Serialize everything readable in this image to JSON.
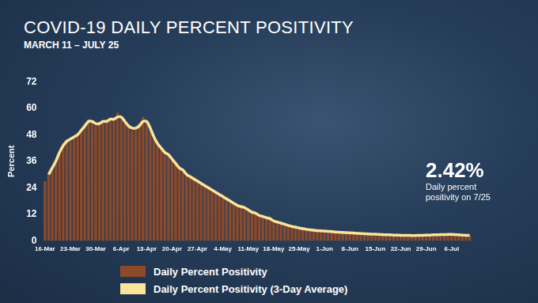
{
  "chart_data": {
    "type": "bar",
    "title": "COVID-19 DAILY PERCENT POSITIVITY",
    "subtitle": "MARCH 11 – JULY 25",
    "y_label": "Percent",
    "annotations": [
      "2.42%",
      "Daily percent positivity on 7/25"
    ],
    "categories": [
      "16-Mar",
      null,
      null,
      null,
      null,
      null,
      null,
      "23-Mar",
      null,
      null,
      null,
      null,
      null,
      null,
      "30-Mar",
      null,
      null,
      null,
      null,
      null,
      null,
      "6-Apr",
      null,
      null,
      null,
      null,
      null,
      null,
      "13-Apr",
      null,
      null,
      null,
      null,
      null,
      null,
      "20-Apr",
      null,
      null,
      null,
      null,
      null,
      null,
      "27-Apr",
      null,
      null,
      null,
      null,
      null,
      null,
      "4-May",
      null,
      null,
      null,
      null,
      null,
      null,
      "11-May",
      null,
      null,
      null,
      null,
      null,
      null,
      "18-May",
      null,
      null,
      null,
      null,
      null,
      null,
      "25-May",
      null,
      null,
      null,
      null,
      null,
      null,
      "1-Jun",
      null,
      null,
      null,
      null,
      null,
      null,
      "8-Jun",
      null,
      null,
      null,
      null,
      null,
      null,
      "15-Jun",
      null,
      null,
      null,
      null,
      null,
      null,
      "22-Jun",
      null,
      null,
      null,
      null,
      null,
      null,
      "29-Jun",
      null,
      null,
      null,
      null,
      null,
      null,
      "6-Jul",
      null,
      null,
      null,
      null,
      null
    ],
    "series": [
      {
        "name": "Daily Percent Positivity",
        "type": "bar",
        "color": "#8c4a2a",
        "values": [
          27,
          30,
          33,
          36,
          40,
          44,
          46,
          45,
          47,
          48,
          50,
          53,
          55,
          54,
          52,
          54,
          53,
          55,
          54,
          56,
          58,
          55,
          54,
          52,
          50,
          51,
          53,
          56,
          54,
          50,
          46,
          43,
          41,
          40,
          39,
          37,
          35,
          33,
          31,
          30,
          29,
          29,
          27,
          26,
          25,
          24,
          23,
          22,
          21,
          20,
          19,
          18,
          17,
          16,
          15,
          15,
          14,
          13,
          12,
          11,
          11,
          10,
          10,
          9,
          8.5,
          8,
          7.5,
          7,
          6.5,
          6,
          5.8,
          5.5,
          5.2,
          5,
          4.8,
          4.6,
          4.5,
          4.5,
          4.3,
          4.2,
          4,
          3.9,
          3.8,
          3.7,
          3.6,
          3.5,
          3.4,
          3.3,
          3.2,
          3.1,
          3,
          3,
          2.9,
          2.8,
          2.7,
          2.7,
          2.6,
          2.6,
          2.5,
          2.5,
          2.5,
          2.4,
          2.4,
          2.5,
          2.5,
          2.6,
          2.6,
          2.7,
          2.7,
          2.8,
          2.8,
          2.9,
          2.9,
          2.8,
          2.7,
          2.6,
          2.5,
          2.5
        ]
      },
      {
        "name": "Daily Percent Positivity (3-Day Average)",
        "type": "line",
        "color": "#f9e49a",
        "values": [
          null,
          30,
          33,
          36,
          40,
          43,
          45,
          46,
          47,
          48,
          50,
          52,
          54,
          54,
          53,
          53,
          54,
          54,
          55,
          55,
          56,
          56,
          54,
          52,
          51,
          51,
          52,
          54,
          54,
          51,
          47,
          44,
          42,
          40,
          39,
          37,
          35,
          33,
          32,
          30,
          29,
          28,
          27,
          26,
          25,
          24,
          23,
          22,
          21,
          20,
          19,
          18,
          17,
          16,
          15.5,
          15,
          14,
          13,
          12.5,
          11.5,
          11,
          10.5,
          10,
          9,
          8.5,
          8,
          7.5,
          7,
          6.5,
          6.2,
          5.8,
          5.5,
          5.2,
          5,
          4.8,
          4.6,
          4.5,
          4.4,
          4.3,
          4.2,
          4,
          3.9,
          3.8,
          3.7,
          3.6,
          3.5,
          3.4,
          3.3,
          3.2,
          3.1,
          3,
          3,
          2.9,
          2.8,
          2.7,
          2.7,
          2.6,
          2.6,
          2.5,
          2.5,
          2.5,
          2.4,
          2.4,
          2.5,
          2.5,
          2.6,
          2.6,
          2.7,
          2.7,
          2.8,
          2.8,
          2.9,
          2.9,
          2.8,
          2.7,
          2.6,
          2.5,
          2.5
        ]
      }
    ],
    "ylim": [
      0,
      72
    ],
    "yticks": [
      0,
      12,
      24,
      36,
      48,
      60,
      72
    ],
    "grid": false,
    "legend": "bottom"
  }
}
